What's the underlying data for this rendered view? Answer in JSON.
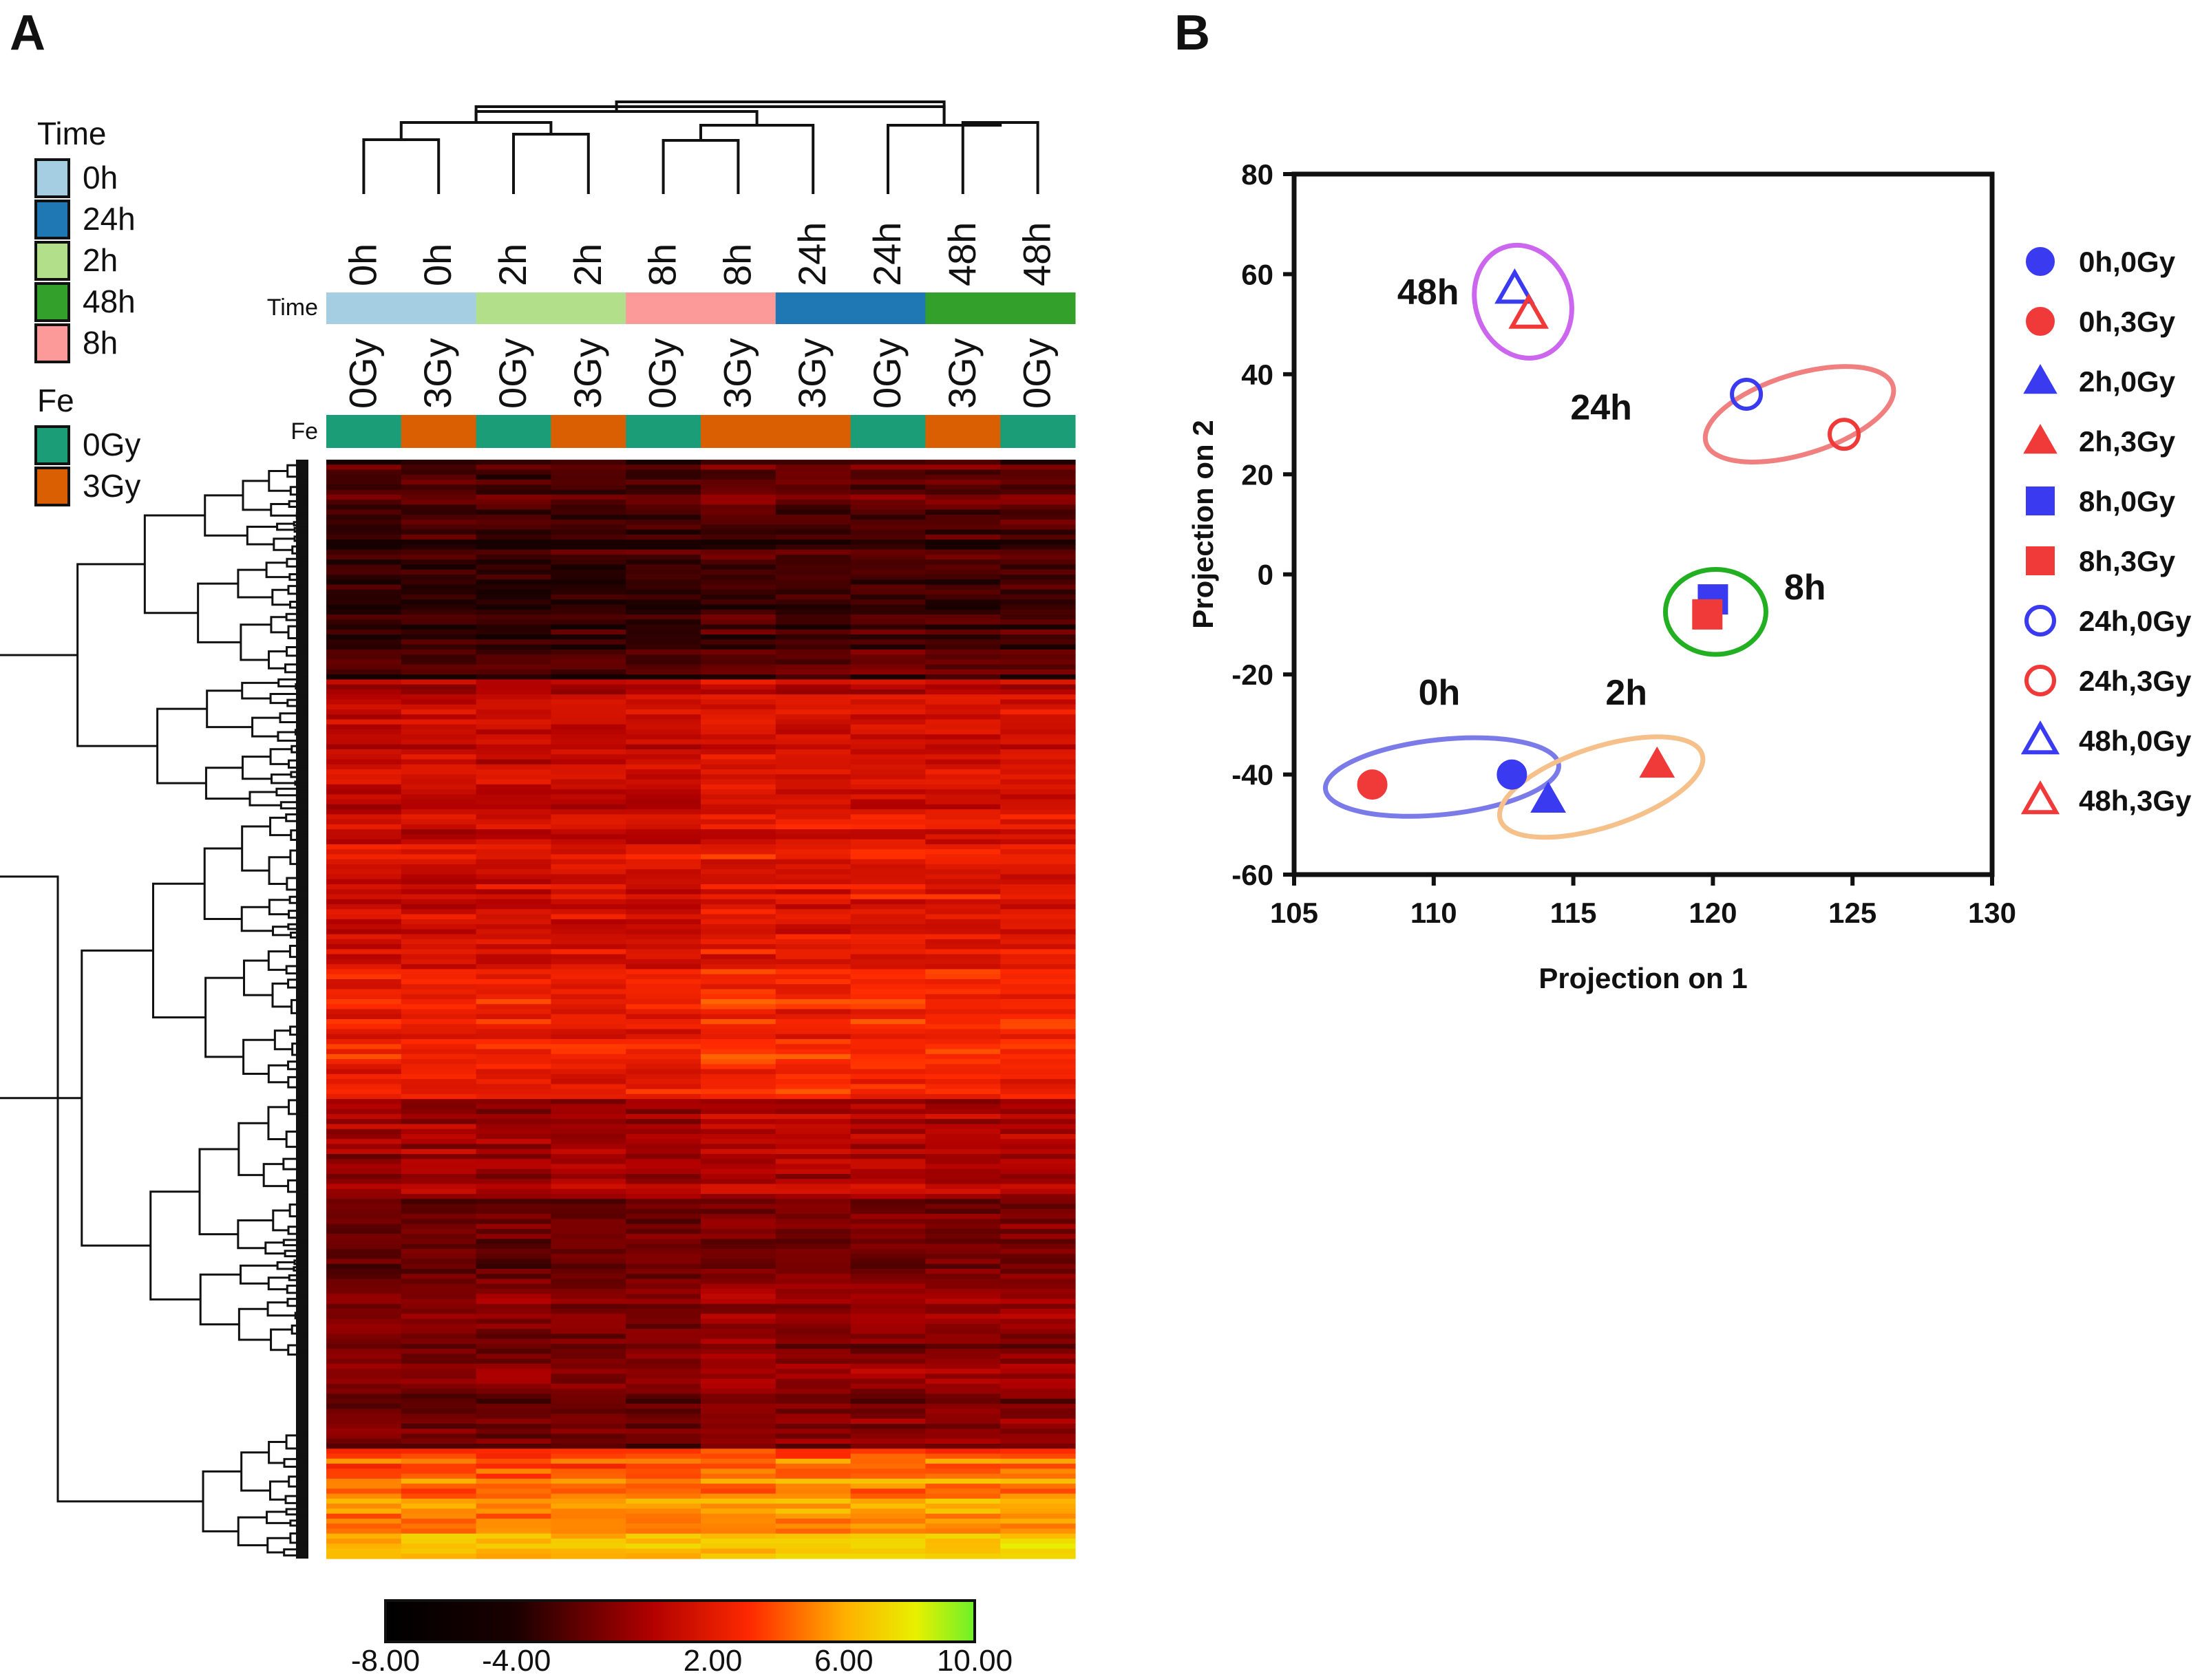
{
  "figure": {
    "panel_a_label": "A",
    "panel_b_label": "B"
  },
  "colors": {
    "time": {
      "0h": "#a6cee3",
      "24h": "#1f78b4",
      "2h": "#b2df8a",
      "48h": "#33a02c",
      "8h": "#fb9a99"
    },
    "fe": {
      "0Gy": "#1b9e77",
      "3Gy": "#d95f02"
    },
    "series_blue": "#3a3af0",
    "series_red": "#f03a3a",
    "ellipse_0h": "#7a7ae8",
    "ellipse_2h": "#f5c08a",
    "ellipse_8h": "#22b022",
    "ellipse_24h": "#f08080",
    "ellipse_48h": "#cc66ee"
  },
  "legend_time": {
    "title": "Time",
    "items": [
      {
        "label": "0h",
        "key": "0h"
      },
      {
        "label": "24h",
        "key": "24h"
      },
      {
        "label": "2h",
        "key": "2h"
      },
      {
        "label": "48h",
        "key": "48h"
      },
      {
        "label": "8h",
        "key": "8h"
      }
    ]
  },
  "legend_fe": {
    "title": "Fe",
    "items": [
      {
        "label": "0Gy",
        "key": "0Gy"
      },
      {
        "label": "3Gy",
        "key": "3Gy"
      }
    ]
  },
  "chart_data": [
    {
      "type": "heatmap",
      "annotation_row_labels": [
        "Time",
        "Fe"
      ],
      "columns": [
        {
          "time": "0h",
          "fe": "0Gy"
        },
        {
          "time": "0h",
          "fe": "3Gy"
        },
        {
          "time": "2h",
          "fe": "0Gy"
        },
        {
          "time": "2h",
          "fe": "3Gy"
        },
        {
          "time": "8h",
          "fe": "0Gy"
        },
        {
          "time": "8h",
          "fe": "3Gy"
        },
        {
          "time": "24h",
          "fe": "3Gy"
        },
        {
          "time": "24h",
          "fe": "0Gy"
        },
        {
          "time": "48h",
          "fe": "3Gy"
        },
        {
          "time": "48h",
          "fe": "0Gy"
        }
      ],
      "colorbar": {
        "ticks": [
          "-8.00",
          "-4.00",
          "2.00",
          "6.00",
          "10.00"
        ],
        "range": [
          -8,
          10
        ]
      }
    },
    {
      "type": "scatter",
      "xlabel": "Projection on 1",
      "ylabel": "Projection on 2",
      "xlim": [
        105,
        130
      ],
      "ylim": [
        -60,
        80
      ],
      "xticks": [
        105,
        110,
        115,
        120,
        125,
        130
      ],
      "yticks": [
        -60,
        -40,
        -20,
        0,
        20,
        40,
        60,
        80
      ],
      "series": [
        {
          "name": "0h,0Gy",
          "marker": "circle",
          "filled": true,
          "color": "blue",
          "x": 112.8,
          "y": -40
        },
        {
          "name": "0h,3Gy",
          "marker": "circle",
          "filled": true,
          "color": "red",
          "x": 107.8,
          "y": -42
        },
        {
          "name": "2h,0Gy",
          "marker": "triangle",
          "filled": true,
          "color": "blue",
          "x": 114.1,
          "y": -45
        },
        {
          "name": "2h,3Gy",
          "marker": "triangle",
          "filled": true,
          "color": "red",
          "x": 118.0,
          "y": -38
        },
        {
          "name": "8h,0Gy",
          "marker": "square",
          "filled": true,
          "color": "blue",
          "x": 120.0,
          "y": -5
        },
        {
          "name": "8h,3Gy",
          "marker": "square",
          "filled": true,
          "color": "red",
          "x": 119.8,
          "y": -8
        },
        {
          "name": "24h,0Gy",
          "marker": "circle",
          "filled": false,
          "color": "blue",
          "x": 121.2,
          "y": 36
        },
        {
          "name": "24h,3Gy",
          "marker": "circle",
          "filled": false,
          "color": "red",
          "x": 124.7,
          "y": 28
        },
        {
          "name": "48h,0Gy",
          "marker": "triangle",
          "filled": false,
          "color": "blue",
          "x": 112.9,
          "y": 57
        },
        {
          "name": "48h,3Gy",
          "marker": "triangle",
          "filled": false,
          "color": "red",
          "x": 113.4,
          "y": 52
        }
      ],
      "cluster_labels": [
        {
          "text": "0h",
          "x": 110.2,
          "y": -26
        },
        {
          "text": "2h",
          "x": 116.9,
          "y": -26
        },
        {
          "text": "8h",
          "x": 123.3,
          "y": -5
        },
        {
          "text": "24h",
          "x": 116.0,
          "y": 31
        },
        {
          "text": "48h",
          "x": 109.8,
          "y": 54
        }
      ],
      "cluster_ellipses": [
        {
          "label": "0h",
          "cx": 110.3,
          "cy": -40.5,
          "rx": 4.2,
          "ry": 7.5,
          "angle": -6,
          "color": "ellipse_0h"
        },
        {
          "label": "2h",
          "cx": 116.0,
          "cy": -42.5,
          "rx": 3.8,
          "ry": 8.0,
          "angle": -18,
          "color": "ellipse_2h"
        },
        {
          "label": "8h",
          "cx": 120.1,
          "cy": -7.5,
          "rx": 1.8,
          "ry": 8.5,
          "angle": 0,
          "color": "ellipse_8h"
        },
        {
          "label": "24h",
          "cx": 123.1,
          "cy": 32.0,
          "rx": 3.5,
          "ry": 8.0,
          "angle": -17,
          "color": "ellipse_24h"
        },
        {
          "label": "48h",
          "cx": 113.2,
          "cy": 54.5,
          "rx": 1.7,
          "ry": 11.5,
          "angle": -20,
          "color": "ellipse_48h"
        }
      ],
      "legend_position": "right"
    }
  ]
}
